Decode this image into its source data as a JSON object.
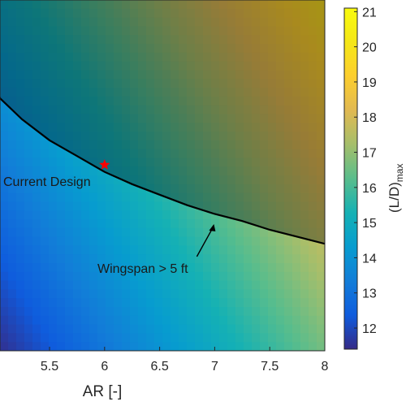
{
  "chart_data": {
    "type": "heatmap",
    "title": "",
    "xlabel": "AR [-]",
    "ylabel": "",
    "xlim": [
      5.05,
      8.0
    ],
    "x_ticks": [
      5.5,
      6,
      6.5,
      7,
      7.5,
      8
    ],
    "x_tick_labels": [
      "5.5",
      "6",
      "6.5",
      "7",
      "7.5",
      "8"
    ],
    "colorbar": {
      "label_main": "(L/D)",
      "label_sub": "max",
      "range": [
        11.4,
        21.1
      ],
      "ticks": [
        12,
        13,
        14,
        15,
        16,
        17,
        18,
        19,
        20,
        21
      ],
      "tick_labels": [
        "12",
        "13",
        "14",
        "15",
        "16",
        "17",
        "18",
        "19",
        "20",
        "21"
      ],
      "colormap": "parula"
    },
    "surface": {
      "description_corners": {
        "x_min_y_top": 14.8,
        "x_max_y_top": 19.8,
        "x_min_y_bottom": 11.5,
        "x_max_y_bottom": 16.6
      }
    },
    "constraint_curve": {
      "x": [
        5.05,
        5.25,
        5.5,
        5.75,
        6.0,
        6.25,
        6.5,
        6.75,
        7.0,
        7.25,
        7.5,
        7.75,
        8.0
      ],
      "y_fraction": [
        0.72,
        0.66,
        0.6,
        0.555,
        0.51,
        0.475,
        0.445,
        0.415,
        0.39,
        0.37,
        0.345,
        0.325,
        0.305
      ],
      "color": "#000000"
    },
    "current_design": {
      "x": 6.0,
      "y_fraction": 0.53,
      "marker": "star",
      "color": "#ff0000"
    },
    "shading_region": "above-curve",
    "annotations": [
      {
        "text": "Current Design"
      },
      {
        "text": "Wingspan > 5 ft",
        "arrow_to_x": 7.0
      }
    ],
    "grid": false
  }
}
